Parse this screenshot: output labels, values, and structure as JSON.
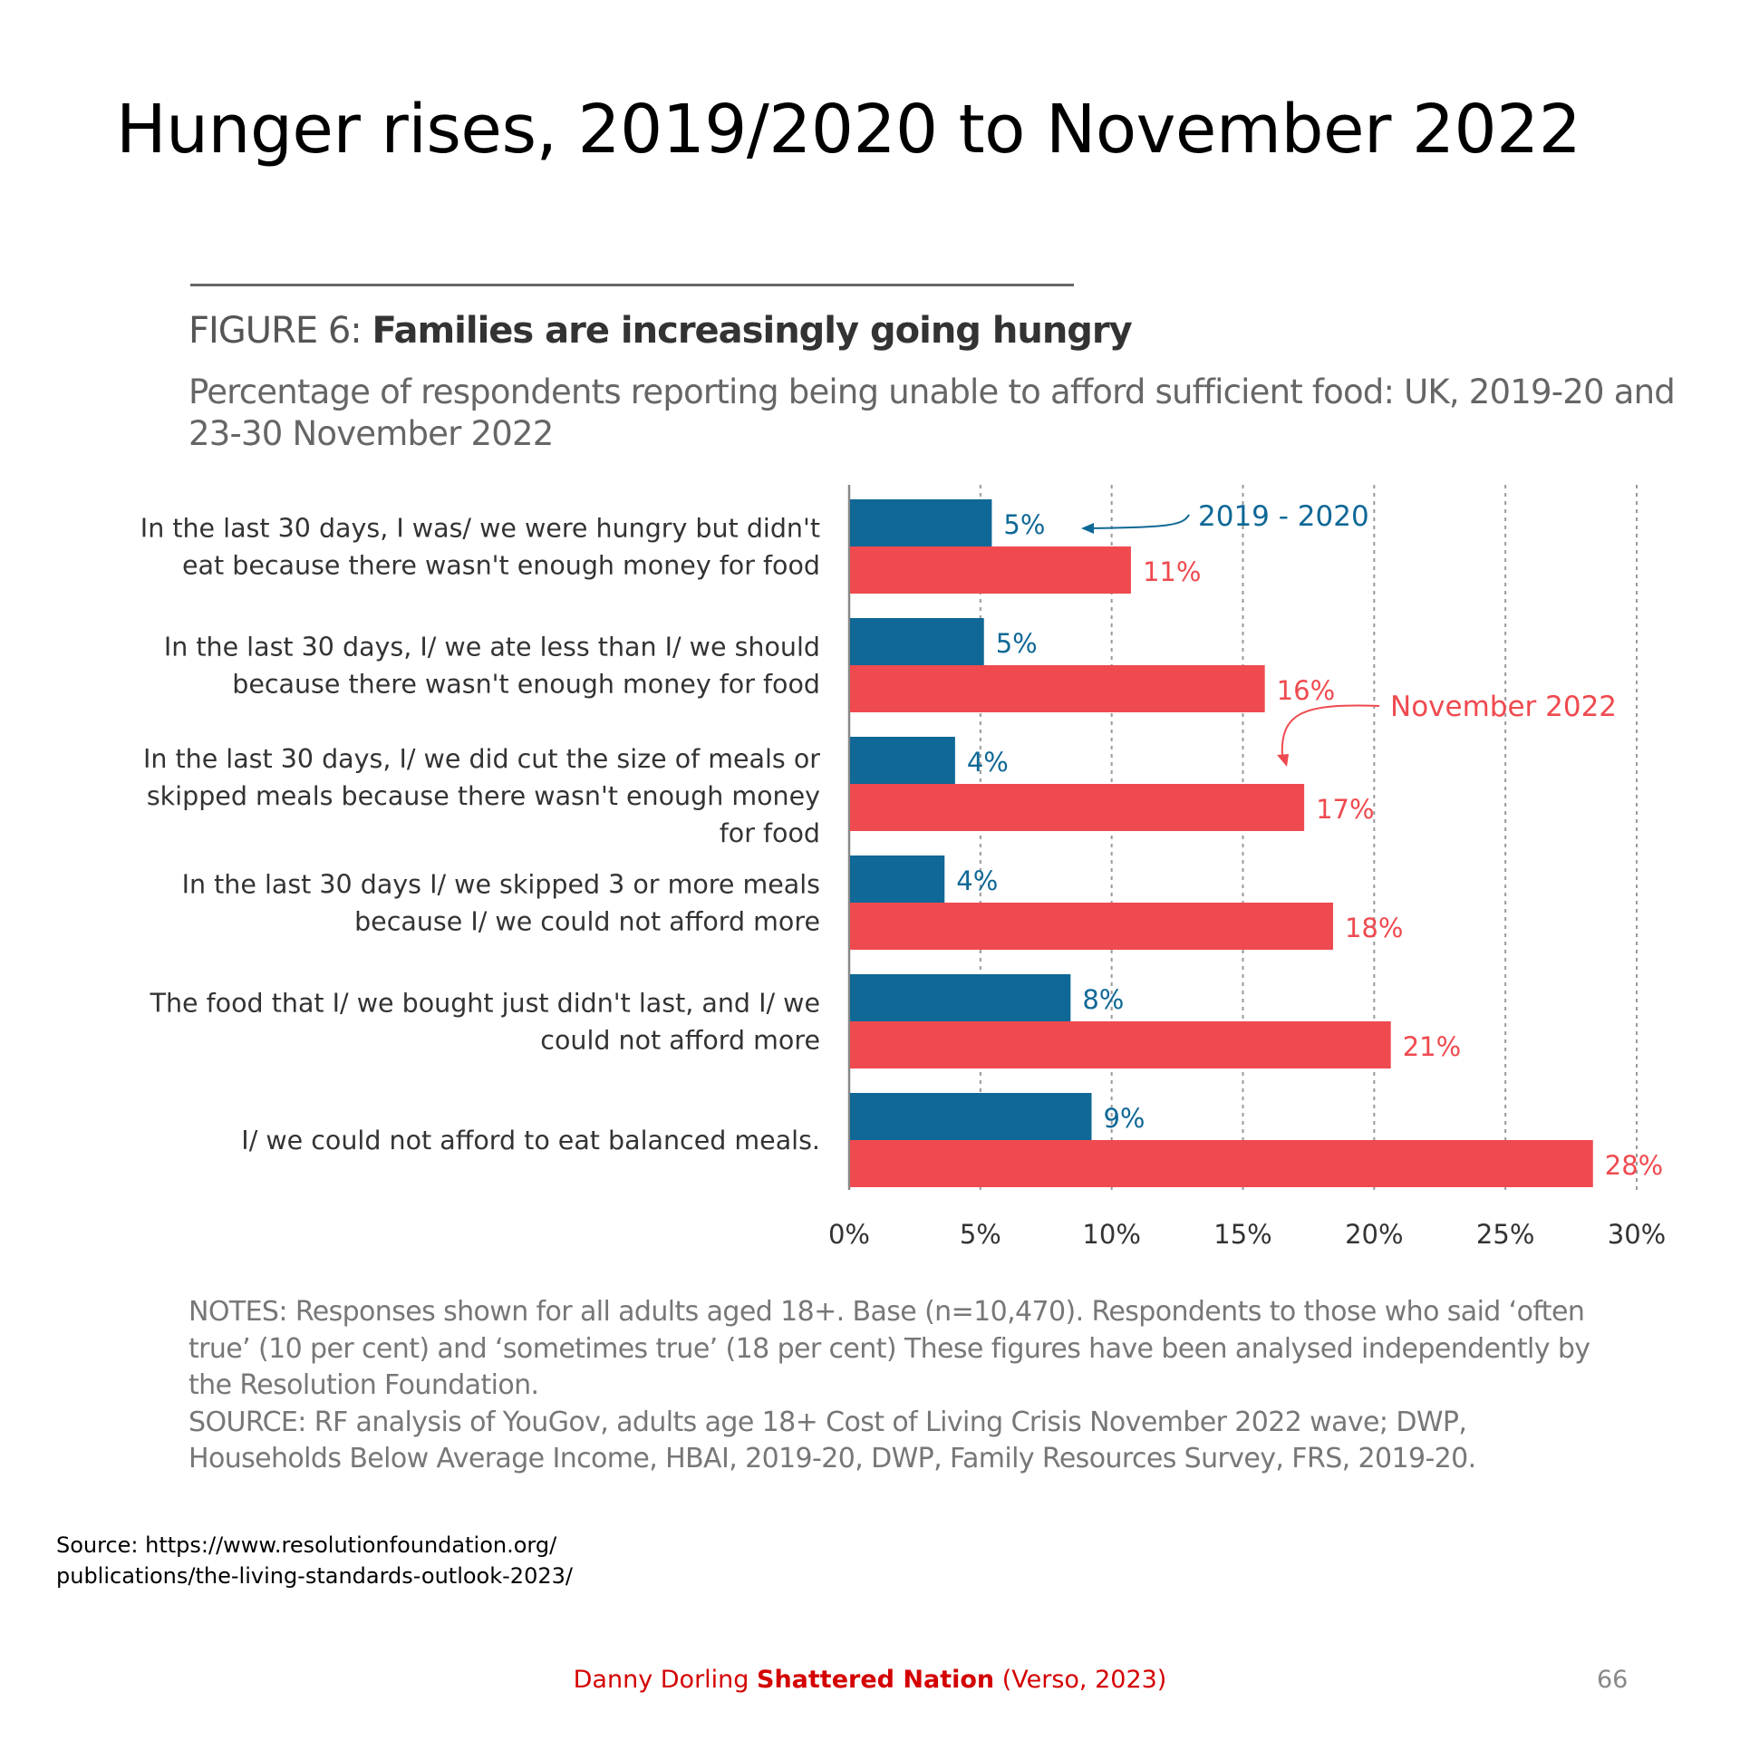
{
  "slide": {
    "title": "Hunger rises, 2019/2020 to November 2022",
    "source_line1": "Source: https://www.resolutionfoundation.org/",
    "source_line2": "publications/the-living-standards-outlook-2023/",
    "credit_author": "Danny Dorling ",
    "credit_book": "Shattered Nation",
    "credit_publisher": " (Verso, 2023)",
    "page_number": "66"
  },
  "figure": {
    "label": "FIGURE 6: ",
    "title": "Families are increasingly going hungry",
    "subtitle": "Percentage of respondents reporting being unable to afford sufficient food: UK, 2019-20 and 23-30 November 2022",
    "notes": "NOTES: Responses shown for all adults aged 18+. Base (n=10,470). Respondents to those who said ‘often true’ (10 per cent) and ‘sometimes true’ (18 per cent) These figures have been analysed independently by the Resolution Foundation.",
    "source": "SOURCE: RF analysis of YouGov, adults age 18+ Cost of Living Crisis November 2022 wave; DWP, Households Below Average Income, HBAI, 2019-20, DWP, Family Resources Survey, FRS, 2019-20."
  },
  "colors": {
    "series_2019": "#0f6896",
    "series_2022": "#ef4a4f",
    "axis": "#888888",
    "grid": "#999999"
  },
  "chart_data": {
    "type": "bar",
    "orientation": "horizontal",
    "title": "Families are increasingly going hungry",
    "xlabel": "",
    "ylabel": "",
    "xlim": [
      0,
      30
    ],
    "x_ticks": [
      "0%",
      "5%",
      "10%",
      "15%",
      "20%",
      "25%",
      "30%"
    ],
    "grid": "vertical dashed",
    "categories": [
      [
        "In the last 30 days, I was/ we were hungry but didn't",
        "eat because there wasn't enough money for food"
      ],
      [
        "In the last 30 days, I/ we ate less than I/ we should",
        "because there wasn't enough money for food"
      ],
      [
        "In the last 30 days, I/ we did cut the size of meals or",
        "skipped meals because there wasn't enough money",
        "for food"
      ],
      [
        "In the last 30 days I/ we skipped 3 or more meals",
        "because I/ we could not afford more"
      ],
      [
        "The food that I/ we bought just didn't last, and I/ we",
        "could not afford more"
      ],
      [
        "I/ we could not afford to eat balanced meals."
      ]
    ],
    "series": [
      {
        "name": "2019 - 2020",
        "values": [
          5.4,
          5.1,
          4.0,
          3.6,
          8.4,
          9.2
        ],
        "labels": [
          "5%",
          "5%",
          "4%",
          "4%",
          "8%",
          "9%"
        ]
      },
      {
        "name": "November 2022",
        "values": [
          10.7,
          15.8,
          17.3,
          18.4,
          20.6,
          28.3
        ],
        "labels": [
          "11%",
          "16%",
          "17%",
          "18%",
          "21%",
          "28%"
        ]
      }
    ]
  }
}
